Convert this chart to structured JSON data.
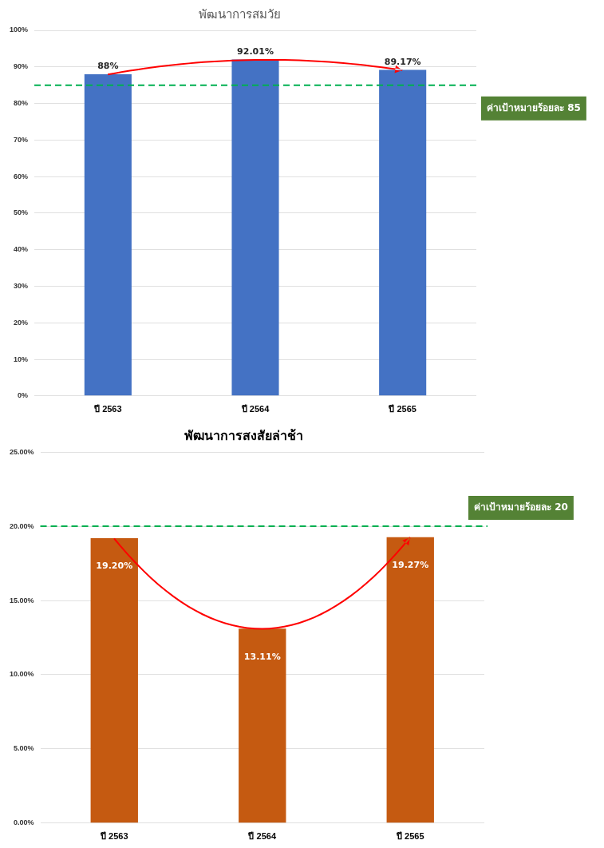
{
  "chart_data": [
    {
      "type": "bar",
      "title": "พัฒนาการสมวัย",
      "categories": [
        "ปี 2563",
        "ปี 2564",
        "ปี 2565"
      ],
      "values": [
        88,
        92.01,
        89.17
      ],
      "value_labels": [
        "88%",
        "92.01%",
        "89.17%"
      ],
      "color": "#4472c4",
      "ylim": [
        0,
        100
      ],
      "yticks": [
        {
          "value": 0,
          "label": "0%"
        },
        {
          "value": 10,
          "label": "10%"
        },
        {
          "value": 20,
          "label": "20%"
        },
        {
          "value": 30,
          "label": "30%"
        },
        {
          "value": 40,
          "label": "40%"
        },
        {
          "value": 50,
          "label": "50%"
        },
        {
          "value": 60,
          "label": "60%"
        },
        {
          "value": 70,
          "label": "70%"
        },
        {
          "value": 80,
          "label": "80%"
        },
        {
          "value": 90,
          "label": "90%"
        },
        {
          "value": 100,
          "label": "100%"
        }
      ],
      "grid": "y",
      "ref_lines": [
        {
          "axis": "y",
          "value": 85,
          "label": "ค่าเป้าหมายร้อยละ 85",
          "color": "#00b050",
          "line_style": "dashed"
        }
      ]
    },
    {
      "type": "bar",
      "title": "พัฒนาการสงสัยล่าช้า",
      "categories": [
        "ปี 2563",
        "ปี 2564",
        "ปี 2565"
      ],
      "values": [
        19.2,
        13.11,
        19.27
      ],
      "value_labels": [
        "19.20%",
        "13.11%",
        "19.27%"
      ],
      "color": "#c55a11",
      "ylim": [
        0,
        25
      ],
      "yticks": [
        {
          "value": 0,
          "label": "0.00%"
        },
        {
          "value": 5,
          "label": "5.00%"
        },
        {
          "value": 10,
          "label": "10.00%"
        },
        {
          "value": 15,
          "label": "15.00%"
        },
        {
          "value": 20,
          "label": "20.00%"
        },
        {
          "value": 25,
          "label": "25.00%"
        }
      ],
      "grid": "y",
      "ref_lines": [
        {
          "axis": "y",
          "value": 20,
          "label": "ค่าเป้าหมายร้อยละ 20",
          "color": "#00b050",
          "line_style": "dashed"
        }
      ]
    }
  ]
}
